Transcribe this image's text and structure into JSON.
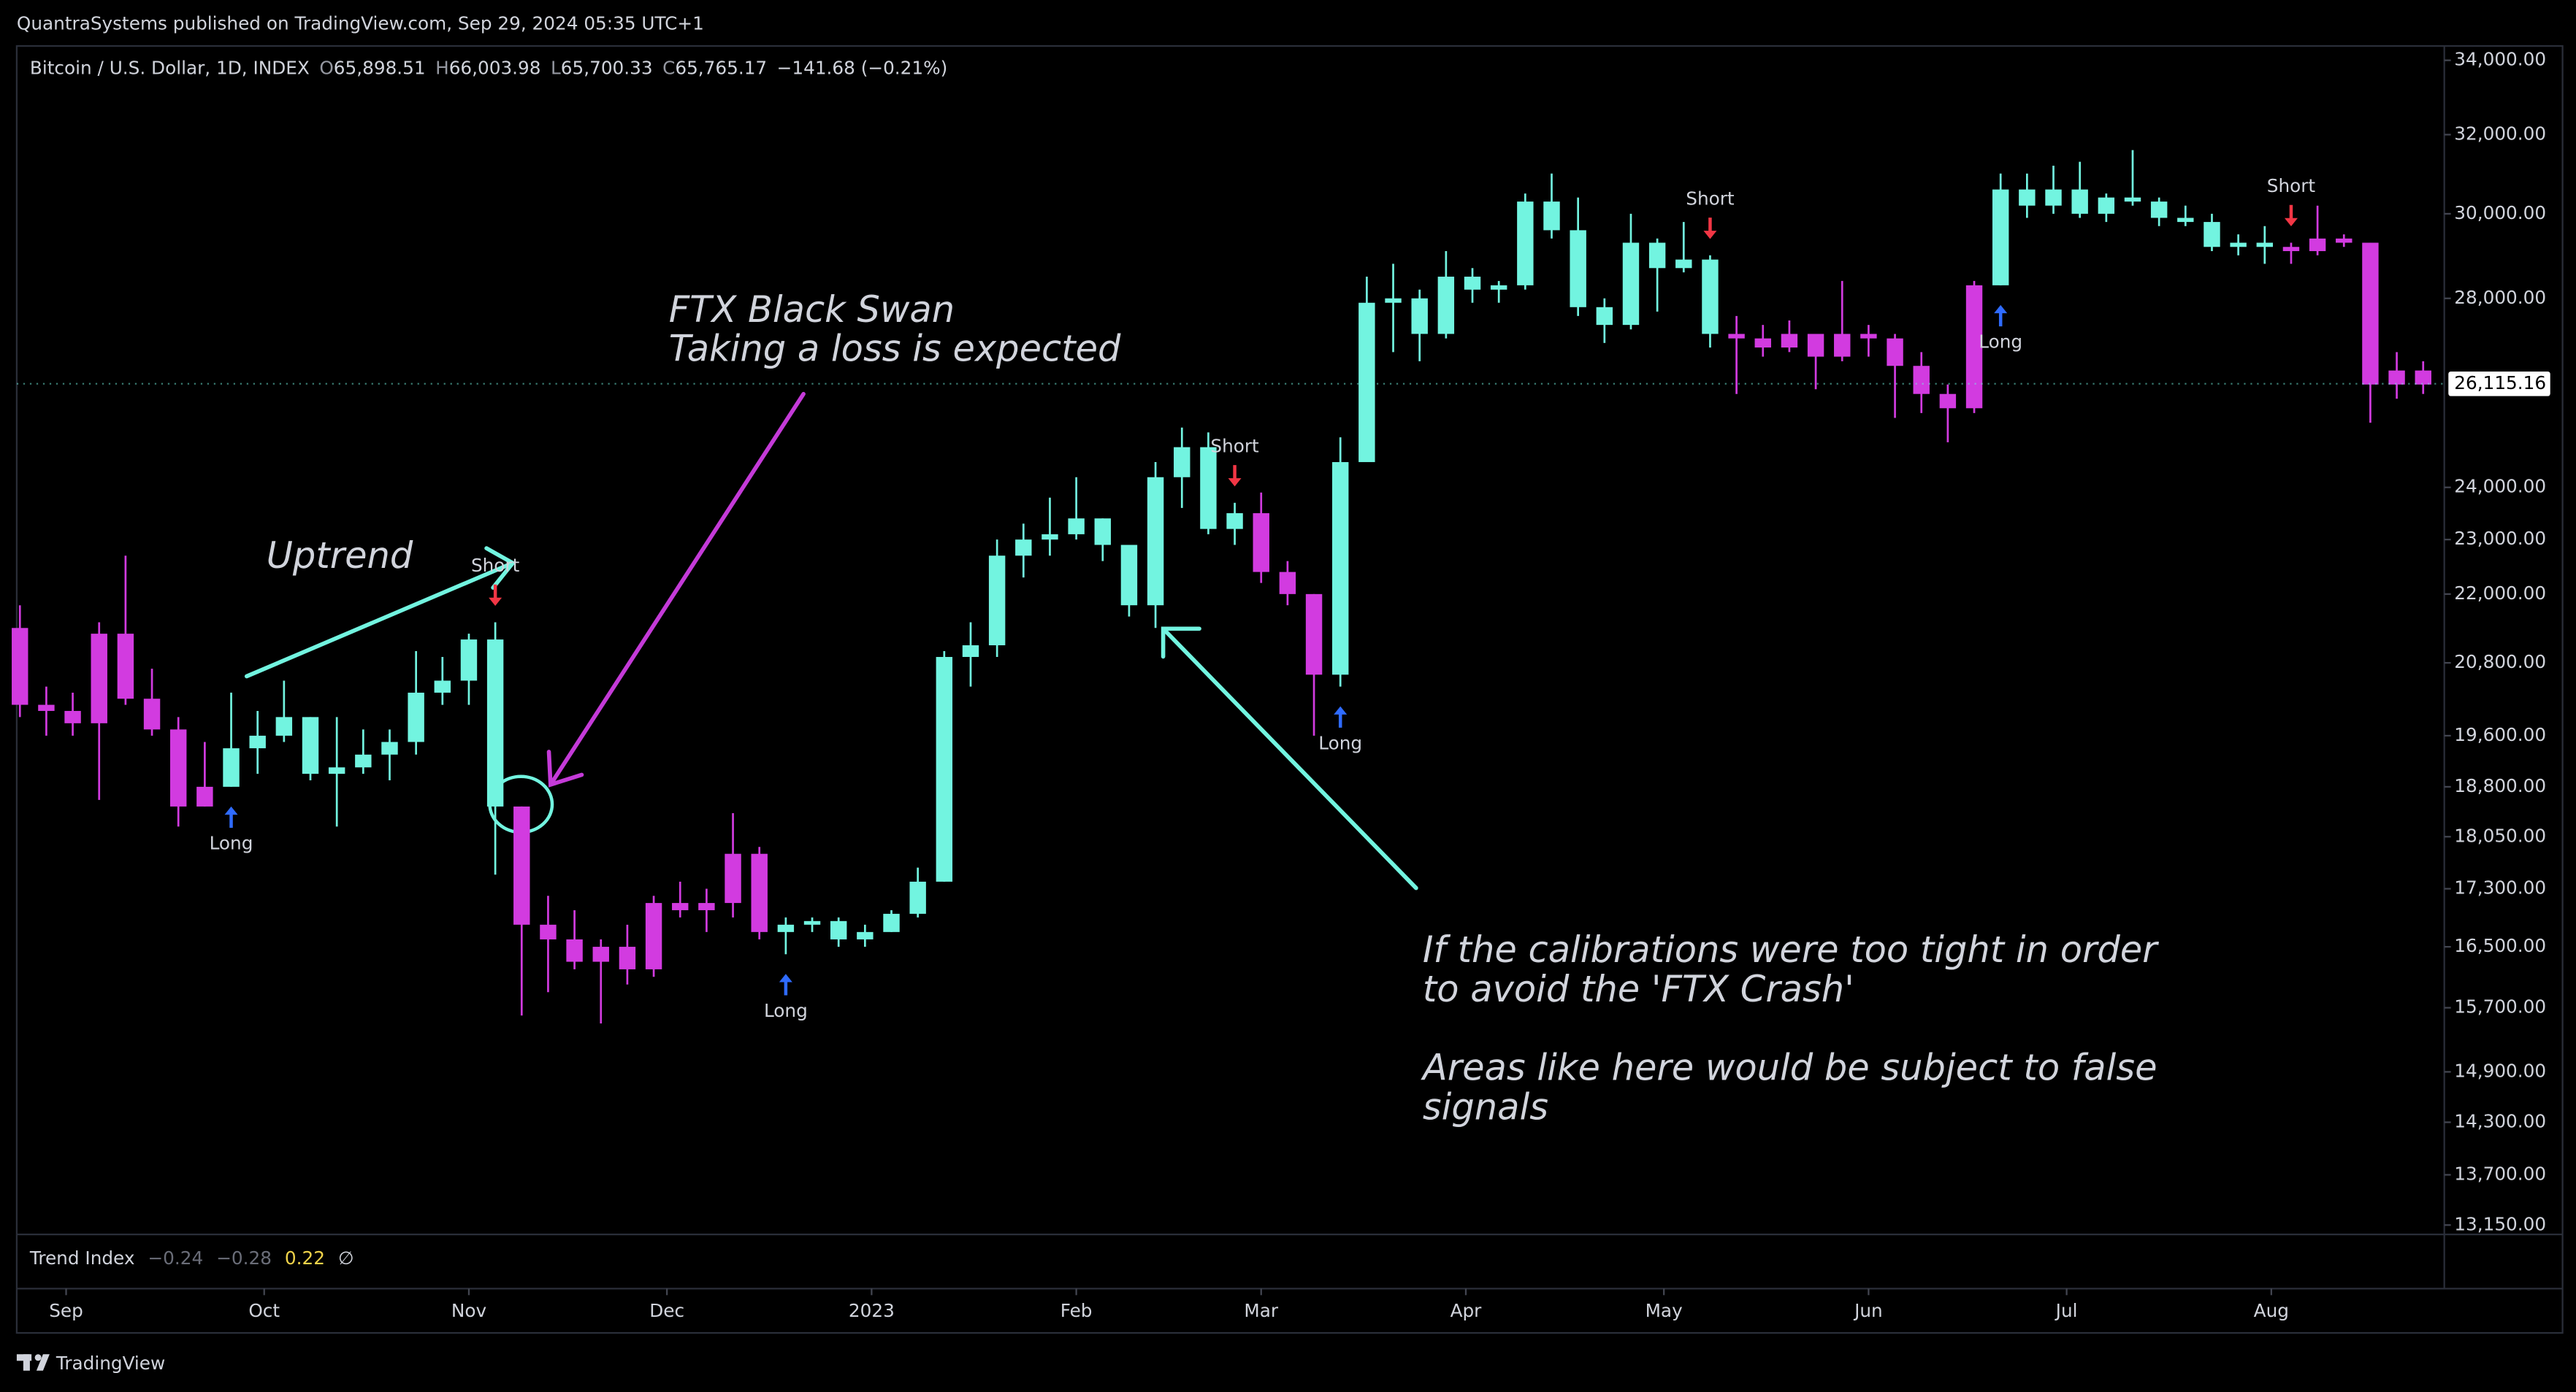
{
  "header": {
    "publisher": "QuantraSystems published on TradingView.com, Sep 29, 2024 05:35 UTC+1"
  },
  "legend": {
    "symbol": "Bitcoin / U.S. Dollar, 1D, INDEX",
    "o": "O",
    "open": "65,898.51",
    "h": "H",
    "high": "66,003.98",
    "l": "L",
    "low": "65,700.33",
    "c": "C",
    "close": "65,765.17",
    "change": "−141.68 (−0.21%)"
  },
  "indicator": {
    "name": "Trend Index",
    "v1": "−0.24",
    "v2": "−0.28",
    "v3": "0.22",
    "v4": "∅"
  },
  "footer": {
    "brand": "TradingView"
  },
  "annotations": {
    "uptrend": "Uptrend",
    "ftx1": "FTX Black Swan",
    "ftx2": "Taking a loss is expected",
    "note1": "If the calibrations were too tight in order",
    "note2": "to avoid the 'FTX Crash'",
    "note3": "Areas like here would be subject to false",
    "note4": "signals"
  },
  "chart_data": {
    "type": "candlestick",
    "log": true,
    "grid": false,
    "ylim": [
      13050,
      34400
    ],
    "yticks": [
      {
        "value": 34000,
        "label": "34,000.00"
      },
      {
        "value": 32000,
        "label": "32,000.00"
      },
      {
        "value": 30000,
        "label": "30,000.00"
      },
      {
        "value": 28000,
        "label": "28,000.00"
      },
      {
        "value": 24000,
        "label": "24,000.00"
      },
      {
        "value": 23000,
        "label": "23,000.00"
      },
      {
        "value": 22000,
        "label": "22,000.00"
      },
      {
        "value": 20800,
        "label": "20,800.00"
      },
      {
        "value": 19600,
        "label": "19,600.00"
      },
      {
        "value": 18800,
        "label": "18,800.00"
      },
      {
        "value": 18050,
        "label": "18,050.00"
      },
      {
        "value": 17300,
        "label": "17,300.00"
      },
      {
        "value": 16500,
        "label": "16,500.00"
      },
      {
        "value": 15700,
        "label": "15,700.00"
      },
      {
        "value": 14900,
        "label": "14,900.00"
      },
      {
        "value": 14300,
        "label": "14,300.00"
      },
      {
        "value": 13700,
        "label": "13,700.00"
      },
      {
        "value": 13150,
        "label": "13,150.00"
      }
    ],
    "xlim": [
      -0.12,
      91.8
    ],
    "xticks": [
      {
        "value": 1.75,
        "label": "Sep"
      },
      {
        "value": 9.25,
        "label": "Oct"
      },
      {
        "value": 17,
        "label": "Nov"
      },
      {
        "value": 24.5,
        "label": "Dec"
      },
      {
        "value": 32.25,
        "label": "2023"
      },
      {
        "value": 40,
        "label": "Feb"
      },
      {
        "value": 47,
        "label": "Mar"
      },
      {
        "value": 54.75,
        "label": "Apr"
      },
      {
        "value": 62.25,
        "label": "May"
      },
      {
        "value": 70,
        "label": "Jun"
      },
      {
        "value": 77.5,
        "label": "Jul"
      },
      {
        "value": 85.25,
        "label": "Aug"
      }
    ],
    "segments": [
      {
        "color": "#d23be0",
        "open": [
          21400,
          20100,
          20000,
          19800,
          21300,
          20200,
          19700,
          18500
        ],
        "high": [
          21800,
          20400,
          20300,
          21500,
          22700,
          20700,
          19900,
          19500
        ],
        "low": [
          19900,
          19600,
          19600,
          18600,
          20100,
          19600,
          18200,
          18500
        ],
        "close": [
          20100,
          20000,
          19800,
          21300,
          20200,
          19700,
          18500,
          18800
        ]
      },
      {
        "color": "#72f4e0",
        "open": [
          18800,
          19400,
          19600,
          19900,
          19000,
          19100,
          19300,
          19500,
          20300,
          20500,
          21200
        ],
        "high": [
          20300,
          20000,
          20500,
          19900,
          19900,
          19700,
          19700,
          21000,
          20900,
          21300,
          21500
        ],
        "low": [
          18800,
          19000,
          19500,
          18900,
          18200,
          19000,
          18900,
          19300,
          20100,
          20100,
          17500
        ],
        "close": [
          19400,
          19600,
          19900,
          19000,
          19100,
          19300,
          19500,
          20300,
          20500,
          21200,
          18500
        ]
      },
      {
        "color": "#d23be0",
        "open": [
          18500,
          16800,
          16600,
          16300,
          16500,
          16200,
          17100,
          17000,
          17100,
          17800
        ],
        "high": [
          18500,
          17200,
          17000,
          16600,
          16800,
          17200,
          17400,
          17300,
          18400,
          17900
        ],
        "low": [
          15600,
          15900,
          16200,
          15500,
          16000,
          16100,
          16900,
          16700,
          16900,
          16600
        ],
        "close": [
          16800,
          16600,
          16300,
          16500,
          16200,
          17100,
          17000,
          17100,
          17800,
          16700
        ]
      },
      {
        "color": "#72f4e0",
        "open": [
          16700,
          16800,
          16850,
          16600,
          16700,
          16950,
          17400,
          20900,
          21100,
          22700,
          23000,
          23100,
          23400,
          22900,
          21800,
          24200,
          24800,
          23200
        ],
        "high": [
          16900,
          16900,
          16900,
          16800,
          17000,
          17600,
          21000,
          21500,
          23000,
          23300,
          23800,
          24200,
          23400,
          22900,
          24500,
          25200,
          25100,
          23700
        ],
        "low": [
          16400,
          16700,
          16500,
          16500,
          16700,
          16900,
          17400,
          20400,
          20900,
          22300,
          22700,
          23000,
          22600,
          21600,
          21400,
          23600,
          23100,
          22900
        ],
        "close": [
          16800,
          16850,
          16600,
          16700,
          16950,
          17400,
          20900,
          21100,
          22700,
          23000,
          23100,
          23400,
          22900,
          21800,
          24200,
          24800,
          23200,
          23500
        ]
      },
      {
        "color": "#d23be0",
        "open": [
          23500,
          22400,
          22000
        ],
        "high": [
          23900,
          22600,
          22000
        ],
        "low": [
          22200,
          21800,
          19600
        ],
        "close": [
          22400,
          22000,
          20600
        ]
      },
      {
        "color": "#72f4e0",
        "open": [
          20600,
          24500,
          27900,
          28000,
          27200,
          28500,
          28200,
          28300,
          30300,
          29600,
          27800,
          27400,
          29300,
          28700,
          28900
        ],
        "high": [
          25000,
          28500,
          28800,
          28200,
          29100,
          28700,
          28400,
          30500,
          31000,
          30400,
          28000,
          30000,
          29400,
          29800,
          29000
        ],
        "low": [
          20400,
          24500,
          26800,
          26600,
          27100,
          27900,
          27900,
          28200,
          29400,
          27600,
          27000,
          27300,
          27700,
          28600,
          26900
        ],
        "close": [
          24500,
          27900,
          28000,
          27200,
          28500,
          28200,
          28300,
          30300,
          29600,
          27800,
          27400,
          29300,
          28700,
          28900,
          27200
        ]
      },
      {
        "color": "#d23be0",
        "open": [
          27200,
          27100,
          26900,
          27200,
          26700,
          27200,
          27100,
          26500,
          25900,
          25600
        ],
        "high": [
          27600,
          27400,
          27500,
          27200,
          28400,
          27400,
          27200,
          26800,
          26100,
          28400
        ],
        "low": [
          25900,
          26700,
          26800,
          26000,
          26600,
          26700,
          25400,
          25500,
          24900,
          25500
        ],
        "close": [
          27100,
          26900,
          27200,
          26700,
          27200,
          27100,
          26500,
          25900,
          25600,
          28300
        ]
      },
      {
        "color": "#72f4e0",
        "open": [
          28300,
          30600,
          30200,
          30600,
          30000,
          30400,
          30300,
          29900,
          29800,
          29200,
          29300
        ],
        "high": [
          31000,
          31000,
          31200,
          31300,
          30500,
          31600,
          30400,
          30200,
          30000,
          29500,
          29700
        ],
        "low": [
          28300,
          29900,
          30000,
          29900,
          29800,
          30200,
          29700,
          29700,
          29100,
          29000,
          28800
        ],
        "close": [
          30600,
          30200,
          30600,
          30000,
          30400,
          30300,
          29900,
          29800,
          29200,
          29300,
          29200
        ]
      },
      {
        "color": "#d23be0",
        "open": [
          29200,
          29100,
          29400,
          29300,
          26100,
          26400
        ],
        "high": [
          29300,
          30200,
          29500,
          29300,
          26800,
          26600
        ],
        "low": [
          28800,
          29000,
          29200,
          25300,
          25800,
          25900
        ],
        "close": [
          29100,
          29400,
          29300,
          26100,
          26400,
          26100
        ]
      }
    ],
    "last_price": {
      "value": 26115.16,
      "label": "26,115.16"
    },
    "long_signals": {
      "label": "Long",
      "color": "#2f6bff",
      "at": [
        8,
        29,
        50,
        75
      ]
    },
    "short_signals": {
      "label": "Short",
      "color": "#f23645",
      "at": [
        18,
        46,
        64,
        86
      ]
    }
  }
}
